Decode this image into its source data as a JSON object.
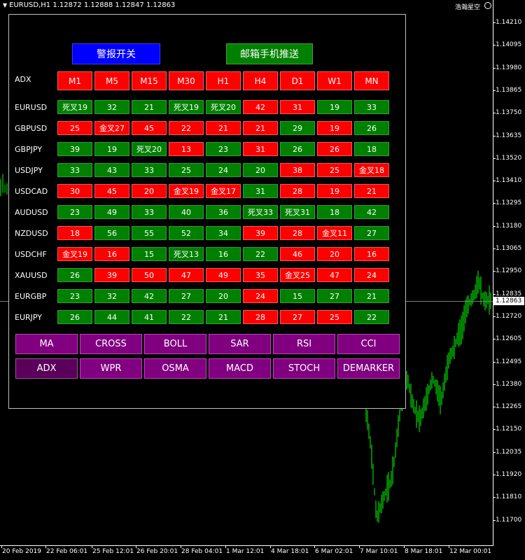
{
  "chart": {
    "header": "EURUSD,H1  1.12872 1.12888 1.12847 1.12863",
    "brand": "浩瀚星空",
    "price_labels": [
      "1.14210",
      "1.14095",
      "1.13980",
      "1.13865",
      "1.13750",
      "1.13635",
      "1.13520",
      "1.13410",
      "1.13295",
      "1.13180",
      "1.13065",
      "1.12950",
      "1.12835",
      "1.12720",
      "1.12605",
      "1.12495",
      "1.12380",
      "1.12265",
      "1.12150",
      "1.12035",
      "1.11920",
      "1.11810",
      "1.11700"
    ],
    "bid_price": "1.12863",
    "time_labels": [
      "20 Feb 2019",
      "22 Feb 06:01",
      "25 Feb 12:01",
      "26 Feb 20:01",
      "28 Feb 04:01",
      "1 Mar 12:01",
      "4 Mar 18:01",
      "6 Mar 02:01",
      "7 Mar 10:01",
      "8 Mar 18:01",
      "12 Mar 00:01"
    ],
    "candle_color": "#00ff00",
    "bid_line_color": "#7f7f7f"
  },
  "panel": {
    "alert_button": "警报开关",
    "email_button": "邮箱手机推送",
    "indicator_label": "ADX",
    "timeframes": [
      "M1",
      "M5",
      "M15",
      "M30",
      "H1",
      "H4",
      "D1",
      "W1",
      "MN"
    ],
    "rows": [
      {
        "pair": "EURUSD",
        "cells": [
          {
            "v": "死叉19",
            "s": "up"
          },
          {
            "v": "32",
            "s": "up"
          },
          {
            "v": "21",
            "s": "up"
          },
          {
            "v": "死叉19",
            "s": "up"
          },
          {
            "v": "死叉20",
            "s": "up"
          },
          {
            "v": "42",
            "s": "down"
          },
          {
            "v": "31",
            "s": "down"
          },
          {
            "v": "19",
            "s": "up"
          },
          {
            "v": "33",
            "s": "up"
          }
        ]
      },
      {
        "pair": "GBPUSD",
        "cells": [
          {
            "v": "25",
            "s": "down"
          },
          {
            "v": "金叉27",
            "s": "down"
          },
          {
            "v": "45",
            "s": "down"
          },
          {
            "v": "22",
            "s": "down"
          },
          {
            "v": "21",
            "s": "down"
          },
          {
            "v": "21",
            "s": "down"
          },
          {
            "v": "29",
            "s": "up"
          },
          {
            "v": "19",
            "s": "down"
          },
          {
            "v": "26",
            "s": "up"
          }
        ]
      },
      {
        "pair": "GBPJPY",
        "cells": [
          {
            "v": "39",
            "s": "up"
          },
          {
            "v": "19",
            "s": "up"
          },
          {
            "v": "死叉20",
            "s": "up"
          },
          {
            "v": "13",
            "s": "down"
          },
          {
            "v": "23",
            "s": "up"
          },
          {
            "v": "31",
            "s": "down"
          },
          {
            "v": "26",
            "s": "up"
          },
          {
            "v": "26",
            "s": "down"
          },
          {
            "v": "18",
            "s": "up"
          }
        ]
      },
      {
        "pair": "USDJPY",
        "cells": [
          {
            "v": "33",
            "s": "up"
          },
          {
            "v": "43",
            "s": "up"
          },
          {
            "v": "33",
            "s": "up"
          },
          {
            "v": "25",
            "s": "up"
          },
          {
            "v": "24",
            "s": "up"
          },
          {
            "v": "20",
            "s": "up"
          },
          {
            "v": "38",
            "s": "down"
          },
          {
            "v": "25",
            "s": "down"
          },
          {
            "v": "金叉18",
            "s": "down"
          }
        ]
      },
      {
        "pair": "USDCAD",
        "cells": [
          {
            "v": "30",
            "s": "down"
          },
          {
            "v": "45",
            "s": "down"
          },
          {
            "v": "20",
            "s": "down"
          },
          {
            "v": "金叉19",
            "s": "down"
          },
          {
            "v": "金叉17",
            "s": "down"
          },
          {
            "v": "31",
            "s": "up"
          },
          {
            "v": "28",
            "s": "down"
          },
          {
            "v": "19",
            "s": "down"
          },
          {
            "v": "21",
            "s": "down"
          }
        ]
      },
      {
        "pair": "AUDUSD",
        "cells": [
          {
            "v": "23",
            "s": "up"
          },
          {
            "v": "49",
            "s": "up"
          },
          {
            "v": "33",
            "s": "up"
          },
          {
            "v": "40",
            "s": "up"
          },
          {
            "v": "36",
            "s": "up"
          },
          {
            "v": "死叉33",
            "s": "up"
          },
          {
            "v": "死叉31",
            "s": "up"
          },
          {
            "v": "18",
            "s": "up"
          },
          {
            "v": "42",
            "s": "up"
          }
        ]
      },
      {
        "pair": "NZDUSD",
        "cells": [
          {
            "v": "18",
            "s": "down"
          },
          {
            "v": "56",
            "s": "up"
          },
          {
            "v": "55",
            "s": "up"
          },
          {
            "v": "52",
            "s": "up"
          },
          {
            "v": "34",
            "s": "up"
          },
          {
            "v": "39",
            "s": "down"
          },
          {
            "v": "28",
            "s": "down"
          },
          {
            "v": "金叉11",
            "s": "down"
          },
          {
            "v": "27",
            "s": "up"
          }
        ]
      },
      {
        "pair": "USDCHF",
        "cells": [
          {
            "v": "金叉19",
            "s": "down"
          },
          {
            "v": "16",
            "s": "down"
          },
          {
            "v": "15",
            "s": "up"
          },
          {
            "v": "死叉13",
            "s": "up"
          },
          {
            "v": "16",
            "s": "up"
          },
          {
            "v": "22",
            "s": "up"
          },
          {
            "v": "46",
            "s": "down"
          },
          {
            "v": "20",
            "s": "down"
          },
          {
            "v": "16",
            "s": "down"
          }
        ]
      },
      {
        "pair": "XAUUSD",
        "cells": [
          {
            "v": "26",
            "s": "up"
          },
          {
            "v": "39",
            "s": "down"
          },
          {
            "v": "50",
            "s": "down"
          },
          {
            "v": "47",
            "s": "down"
          },
          {
            "v": "49",
            "s": "down"
          },
          {
            "v": "35",
            "s": "down"
          },
          {
            "v": "金叉25",
            "s": "down"
          },
          {
            "v": "47",
            "s": "down"
          },
          {
            "v": "24",
            "s": "down"
          }
        ]
      },
      {
        "pair": "EURGBP",
        "cells": [
          {
            "v": "23",
            "s": "up"
          },
          {
            "v": "32",
            "s": "up"
          },
          {
            "v": "42",
            "s": "up"
          },
          {
            "v": "27",
            "s": "up"
          },
          {
            "v": "20",
            "s": "up"
          },
          {
            "v": "24",
            "s": "down"
          },
          {
            "v": "15",
            "s": "up"
          },
          {
            "v": "27",
            "s": "up"
          },
          {
            "v": "21",
            "s": "up"
          }
        ]
      },
      {
        "pair": "EURJPY",
        "cells": [
          {
            "v": "26",
            "s": "up"
          },
          {
            "v": "44",
            "s": "up"
          },
          {
            "v": "41",
            "s": "up"
          },
          {
            "v": "22",
            "s": "up"
          },
          {
            "v": "21",
            "s": "up"
          },
          {
            "v": "28",
            "s": "down"
          },
          {
            "v": "27",
            "s": "down"
          },
          {
            "v": "25",
            "s": "down"
          },
          {
            "v": "22",
            "s": "up"
          }
        ]
      }
    ],
    "indicator_buttons": [
      "MA",
      "CROSS",
      "BOLL",
      "SAR",
      "RSI",
      "CCI",
      "ADX",
      "WPR",
      "OSMA",
      "MACD",
      "STOCH",
      "DEMARKER"
    ],
    "active_indicator": "ADX",
    "colors": {
      "up": "#008000",
      "down": "#ff0000",
      "header": "#ff0000",
      "alert": "#0000ff",
      "email": "#008000",
      "indicator": "#800080"
    }
  }
}
